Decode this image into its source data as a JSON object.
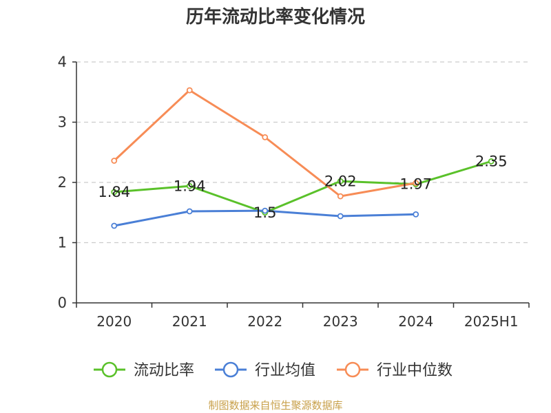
{
  "chart_data": {
    "type": "line",
    "title": "历年流动比率变化情况",
    "categories": [
      "2020",
      "2021",
      "2022",
      "2023",
      "2024",
      "2025H1"
    ],
    "ylim": [
      0,
      4
    ],
    "yticks": [
      0,
      1,
      2,
      3,
      4
    ],
    "grid": true,
    "legend_position": "bottom",
    "series": [
      {
        "name": "流动比率",
        "color": "#5ac12a",
        "values": [
          1.84,
          1.94,
          1.5,
          2.02,
          1.97,
          2.35
        ],
        "labels": [
          "1.84",
          "1.94",
          "1.5",
          "2.02",
          "1.97",
          "2.35"
        ]
      },
      {
        "name": "行业均值",
        "color": "#4a7fd6",
        "values": [
          1.28,
          1.52,
          1.53,
          1.44,
          1.47,
          null
        ]
      },
      {
        "name": "行业中位数",
        "color": "#f78c56",
        "values": [
          2.36,
          3.53,
          2.75,
          1.77,
          1.99,
          null
        ]
      }
    ]
  },
  "footer": "制图数据来自恒生聚源数据库"
}
